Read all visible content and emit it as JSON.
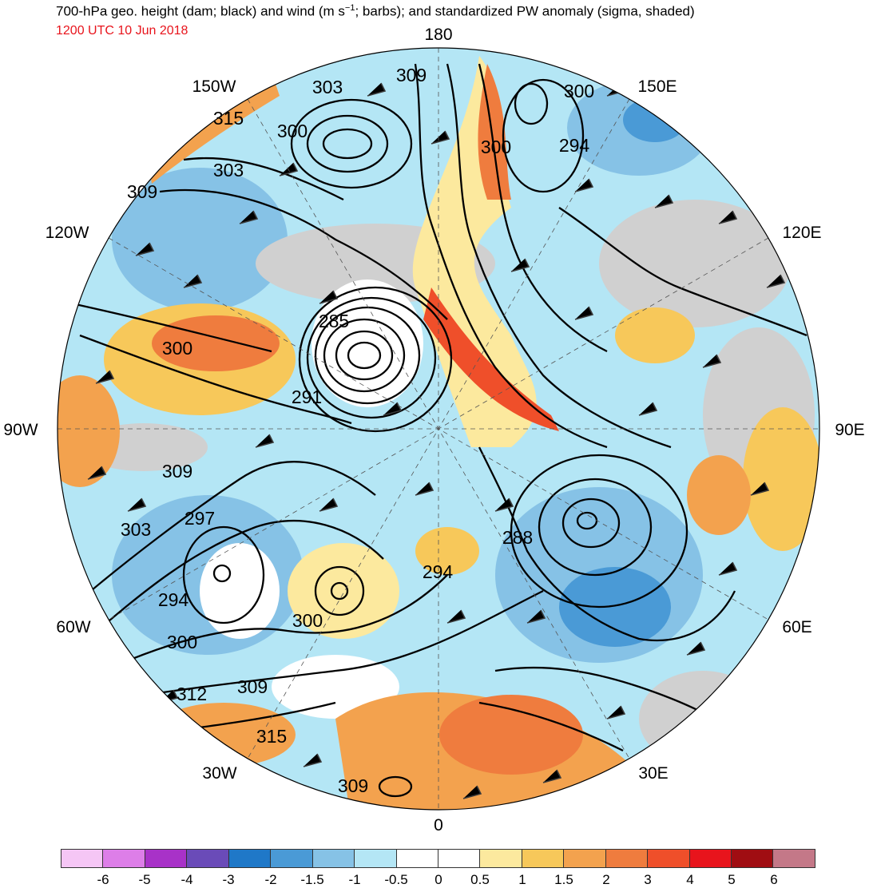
{
  "header": {
    "title_main": "700-hPa geo. height (dam; black) and wind (m s",
    "title_sup": "−1",
    "title_rest": "; barbs); and standardized PW anomaly (sigma, shaded)",
    "valid_time": "1200 UTC 10 Jun 2018"
  },
  "map": {
    "projection": "north-polar-stereographic",
    "longitude_labels": {
      "top": "180",
      "bottom": "0",
      "left": "90W",
      "right": "90E",
      "upper_left": "150W",
      "upper_right": "150E",
      "mid_upper_left": "120W",
      "mid_upper_right": "120E",
      "mid_lower_left": "60W",
      "mid_lower_right": "60E",
      "lower_left": "30W",
      "lower_right": "30E"
    },
    "contour_labels": [
      "309",
      "303",
      "300",
      "315",
      "300",
      "303",
      "309",
      "300",
      "294",
      "285",
      "300",
      "291",
      "309",
      "303",
      "297",
      "294",
      "300",
      "312",
      "309",
      "315",
      "309",
      "288",
      "294",
      "300"
    ],
    "colors": {
      "contour": "#000000",
      "wind_barb": "#3a3a3a",
      "land_gray": "#c8c8c8"
    }
  },
  "legend": {
    "colors": [
      "#f5c6f5",
      "#dd7ee8",
      "#a832c8",
      "#6a4bb8",
      "#1f78c8",
      "#4a9ad6",
      "#86c2e6",
      "#b4e6f5",
      "#ffffff",
      "#ffffff",
      "#fce99e",
      "#f7c85a",
      "#f3a24e",
      "#ef7c3e",
      "#ef4f2a",
      "#e8141c",
      "#a00d12",
      "#c47888"
    ],
    "tick_labels": [
      "-6",
      "-5",
      "-4",
      "-3",
      "-2",
      "-1.5",
      "-1",
      "-0.5",
      "0",
      "0.5",
      "1",
      "1.5",
      "2",
      "3",
      "4",
      "5",
      "6"
    ]
  }
}
